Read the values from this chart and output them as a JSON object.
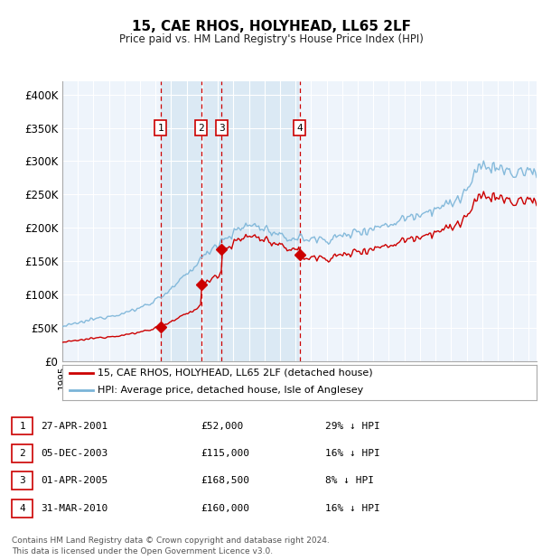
{
  "title": "15, CAE RHOS, HOLYHEAD, LL65 2LF",
  "subtitle": "Price paid vs. HM Land Registry's House Price Index (HPI)",
  "ylim": [
    0,
    420000
  ],
  "yticks": [
    0,
    50000,
    100000,
    150000,
    200000,
    250000,
    300000,
    350000,
    400000
  ],
  "ytick_labels": [
    "£0",
    "£50K",
    "£100K",
    "£150K",
    "£200K",
    "£250K",
    "£300K",
    "£350K",
    "£400K"
  ],
  "sale_dates": [
    2001.32,
    2003.92,
    2005.25,
    2010.25
  ],
  "sale_prices": [
    52000,
    115000,
    168500,
    160000
  ],
  "sale_labels": [
    "1",
    "2",
    "3",
    "4"
  ],
  "hpi_color": "#7ab4d8",
  "price_color": "#cc0000",
  "vline_color": "#cc0000",
  "shade_color": "#daeaf5",
  "legend_entries": [
    "15, CAE RHOS, HOLYHEAD, LL65 2LF (detached house)",
    "HPI: Average price, detached house, Isle of Anglesey"
  ],
  "table_rows": [
    [
      "1",
      "27-APR-2001",
      "£52,000",
      "29% ↓ HPI"
    ],
    [
      "2",
      "05-DEC-2003",
      "£115,000",
      "16% ↓ HPI"
    ],
    [
      "3",
      "01-APR-2005",
      "£168,500",
      "8% ↓ HPI"
    ],
    [
      "4",
      "31-MAR-2010",
      "£160,000",
      "16% ↓ HPI"
    ]
  ],
  "footnote": "Contains HM Land Registry data © Crown copyright and database right 2024.\nThis data is licensed under the Open Government Licence v3.0.",
  "background_color": "#ffffff",
  "plot_bg_color": "#eef4fb",
  "xmin": 1995.0,
  "xmax": 2025.5,
  "hpi_knots_x": [
    1995,
    1996,
    1997,
    1998,
    1999,
    2000,
    2001,
    2002,
    2003,
    2004,
    2005,
    2006,
    2007,
    2008,
    2009,
    2010,
    2011,
    2012,
    2013,
    2014,
    2015,
    2016,
    2017,
    2018,
    2019,
    2020,
    2021,
    2022,
    2023,
    2024,
    2025
  ],
  "hpi_knots_y": [
    52000,
    57000,
    63000,
    68000,
    72000,
    80000,
    92000,
    107000,
    130000,
    155000,
    178000,
    192000,
    205000,
    200000,
    185000,
    185000,
    183000,
    183000,
    187000,
    195000,
    200000,
    205000,
    215000,
    222000,
    230000,
    235000,
    255000,
    295000,
    290000,
    280000,
    285000
  ]
}
